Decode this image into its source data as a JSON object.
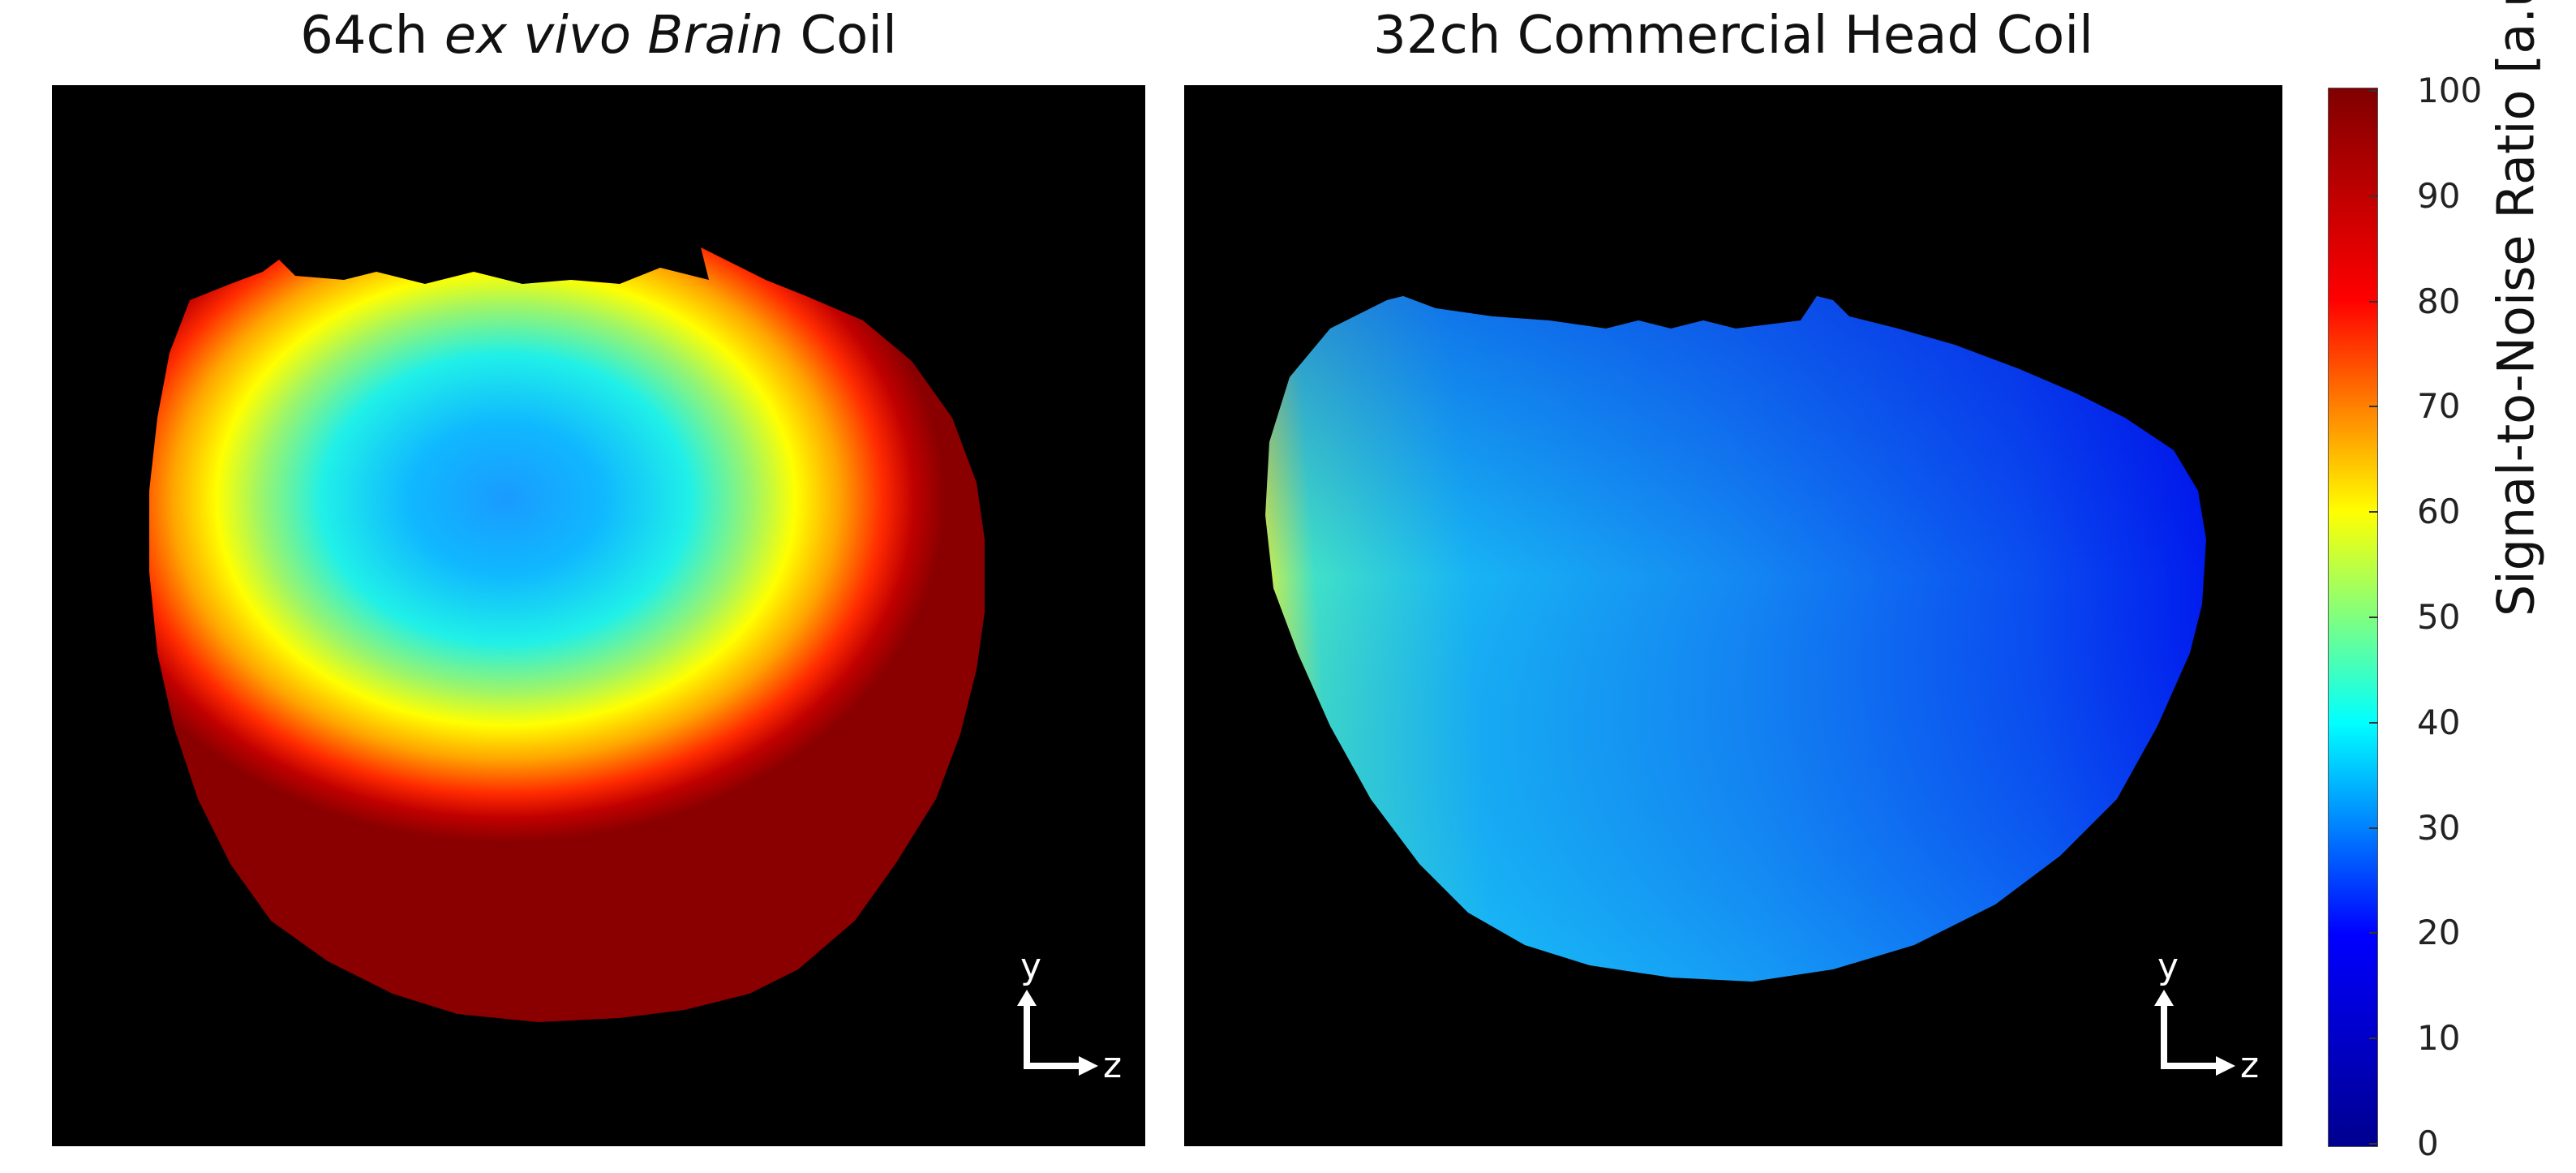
{
  "panels": {
    "left": {
      "title_prefix": "64ch",
      "title_italic": "ex vivo Brain",
      "title_suffix": "Coil",
      "axis_y": "y",
      "axis_z": "z"
    },
    "right": {
      "title": "32ch Commercial Head Coil",
      "axis_y": "y",
      "axis_z": "z"
    }
  },
  "colorbar": {
    "label": "Signal-to-Noise Ratio [a.u.]",
    "ticks": [
      "100",
      "90",
      "80",
      "70",
      "60",
      "50",
      "40",
      "30",
      "20",
      "10",
      "0"
    ],
    "min": 0,
    "max": 100,
    "colormap": "jet",
    "colors": [
      "#00008f",
      "#0000ff",
      "#00ffff",
      "#ffff00",
      "#ff0000",
      "#800000"
    ]
  }
}
